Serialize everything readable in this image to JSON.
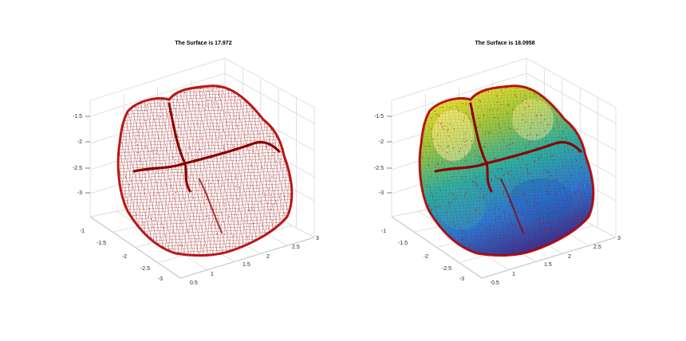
{
  "chart_data": [
    {
      "type": "surface",
      "title": "The Surface is 17.972",
      "rendering": "wireframe-mesh",
      "surface_colors": [
        "#ffffff"
      ],
      "mesh_color": "#8b0000",
      "vertex_marker_color": "#c00000",
      "grid": true,
      "x_ticks": [
        "0.5",
        "1",
        "1.5",
        "2",
        "2.5",
        "3"
      ],
      "y_ticks": [
        "-1",
        "-1.5",
        "-2",
        "-2.5",
        "-3"
      ],
      "z_ticks": [
        "-1.5",
        "-2",
        "-2.5",
        "-3"
      ]
    },
    {
      "type": "surface",
      "title": "The Surface is 18.0958",
      "rendering": "colormap-surface",
      "surface_colors": [
        "#f9e83a",
        "#a0cc3c",
        "#2ab3a5",
        "#2a7bd6",
        "#3c2f8e"
      ],
      "mesh_color": "#8b0000",
      "vertex_marker_color": "#c00000",
      "grid": true,
      "x_ticks": [
        "0.5",
        "1",
        "1.5",
        "2",
        "2.5",
        "3"
      ],
      "y_ticks": [
        "-1",
        "-1.5",
        "-2",
        "-2.5",
        "-3"
      ],
      "z_ticks": [
        "-1.5",
        "-2",
        "-2.5",
        "-3"
      ]
    }
  ]
}
